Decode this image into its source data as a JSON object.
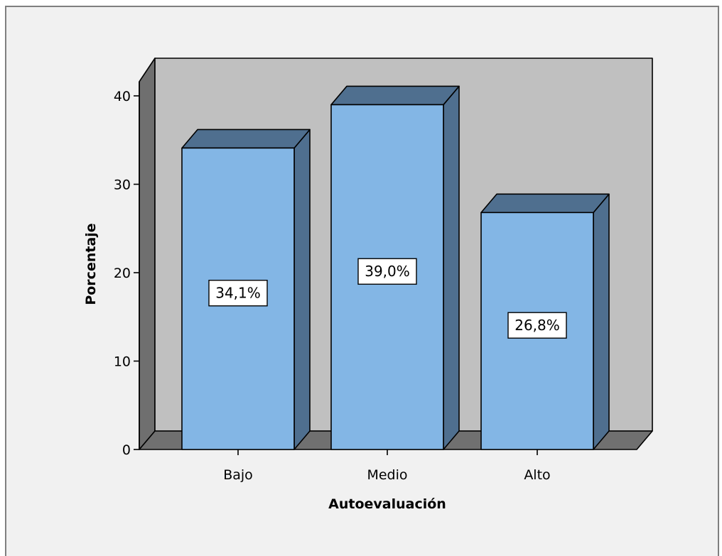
{
  "chart_data": {
    "type": "bar",
    "style": "3d",
    "categories": [
      "Bajo",
      "Medio",
      "Alto"
    ],
    "values": [
      34.1,
      39.0,
      26.8
    ],
    "data_labels": [
      "34,1%",
      "39,0%",
      "26,8%"
    ],
    "xlabel": "Autoevaluación",
    "ylabel": "Porcentaje",
    "ylim": [
      0,
      40
    ],
    "yticks": [
      0,
      10,
      20,
      30,
      40
    ],
    "grid": false,
    "colors": {
      "bar_front": "#83b6e5",
      "bar_side": "#4f6f8f",
      "wall": "#c0c0c0",
      "wall_side": "#6f6f6f",
      "floor": "#707070",
      "background": "#f1f1f1"
    }
  }
}
